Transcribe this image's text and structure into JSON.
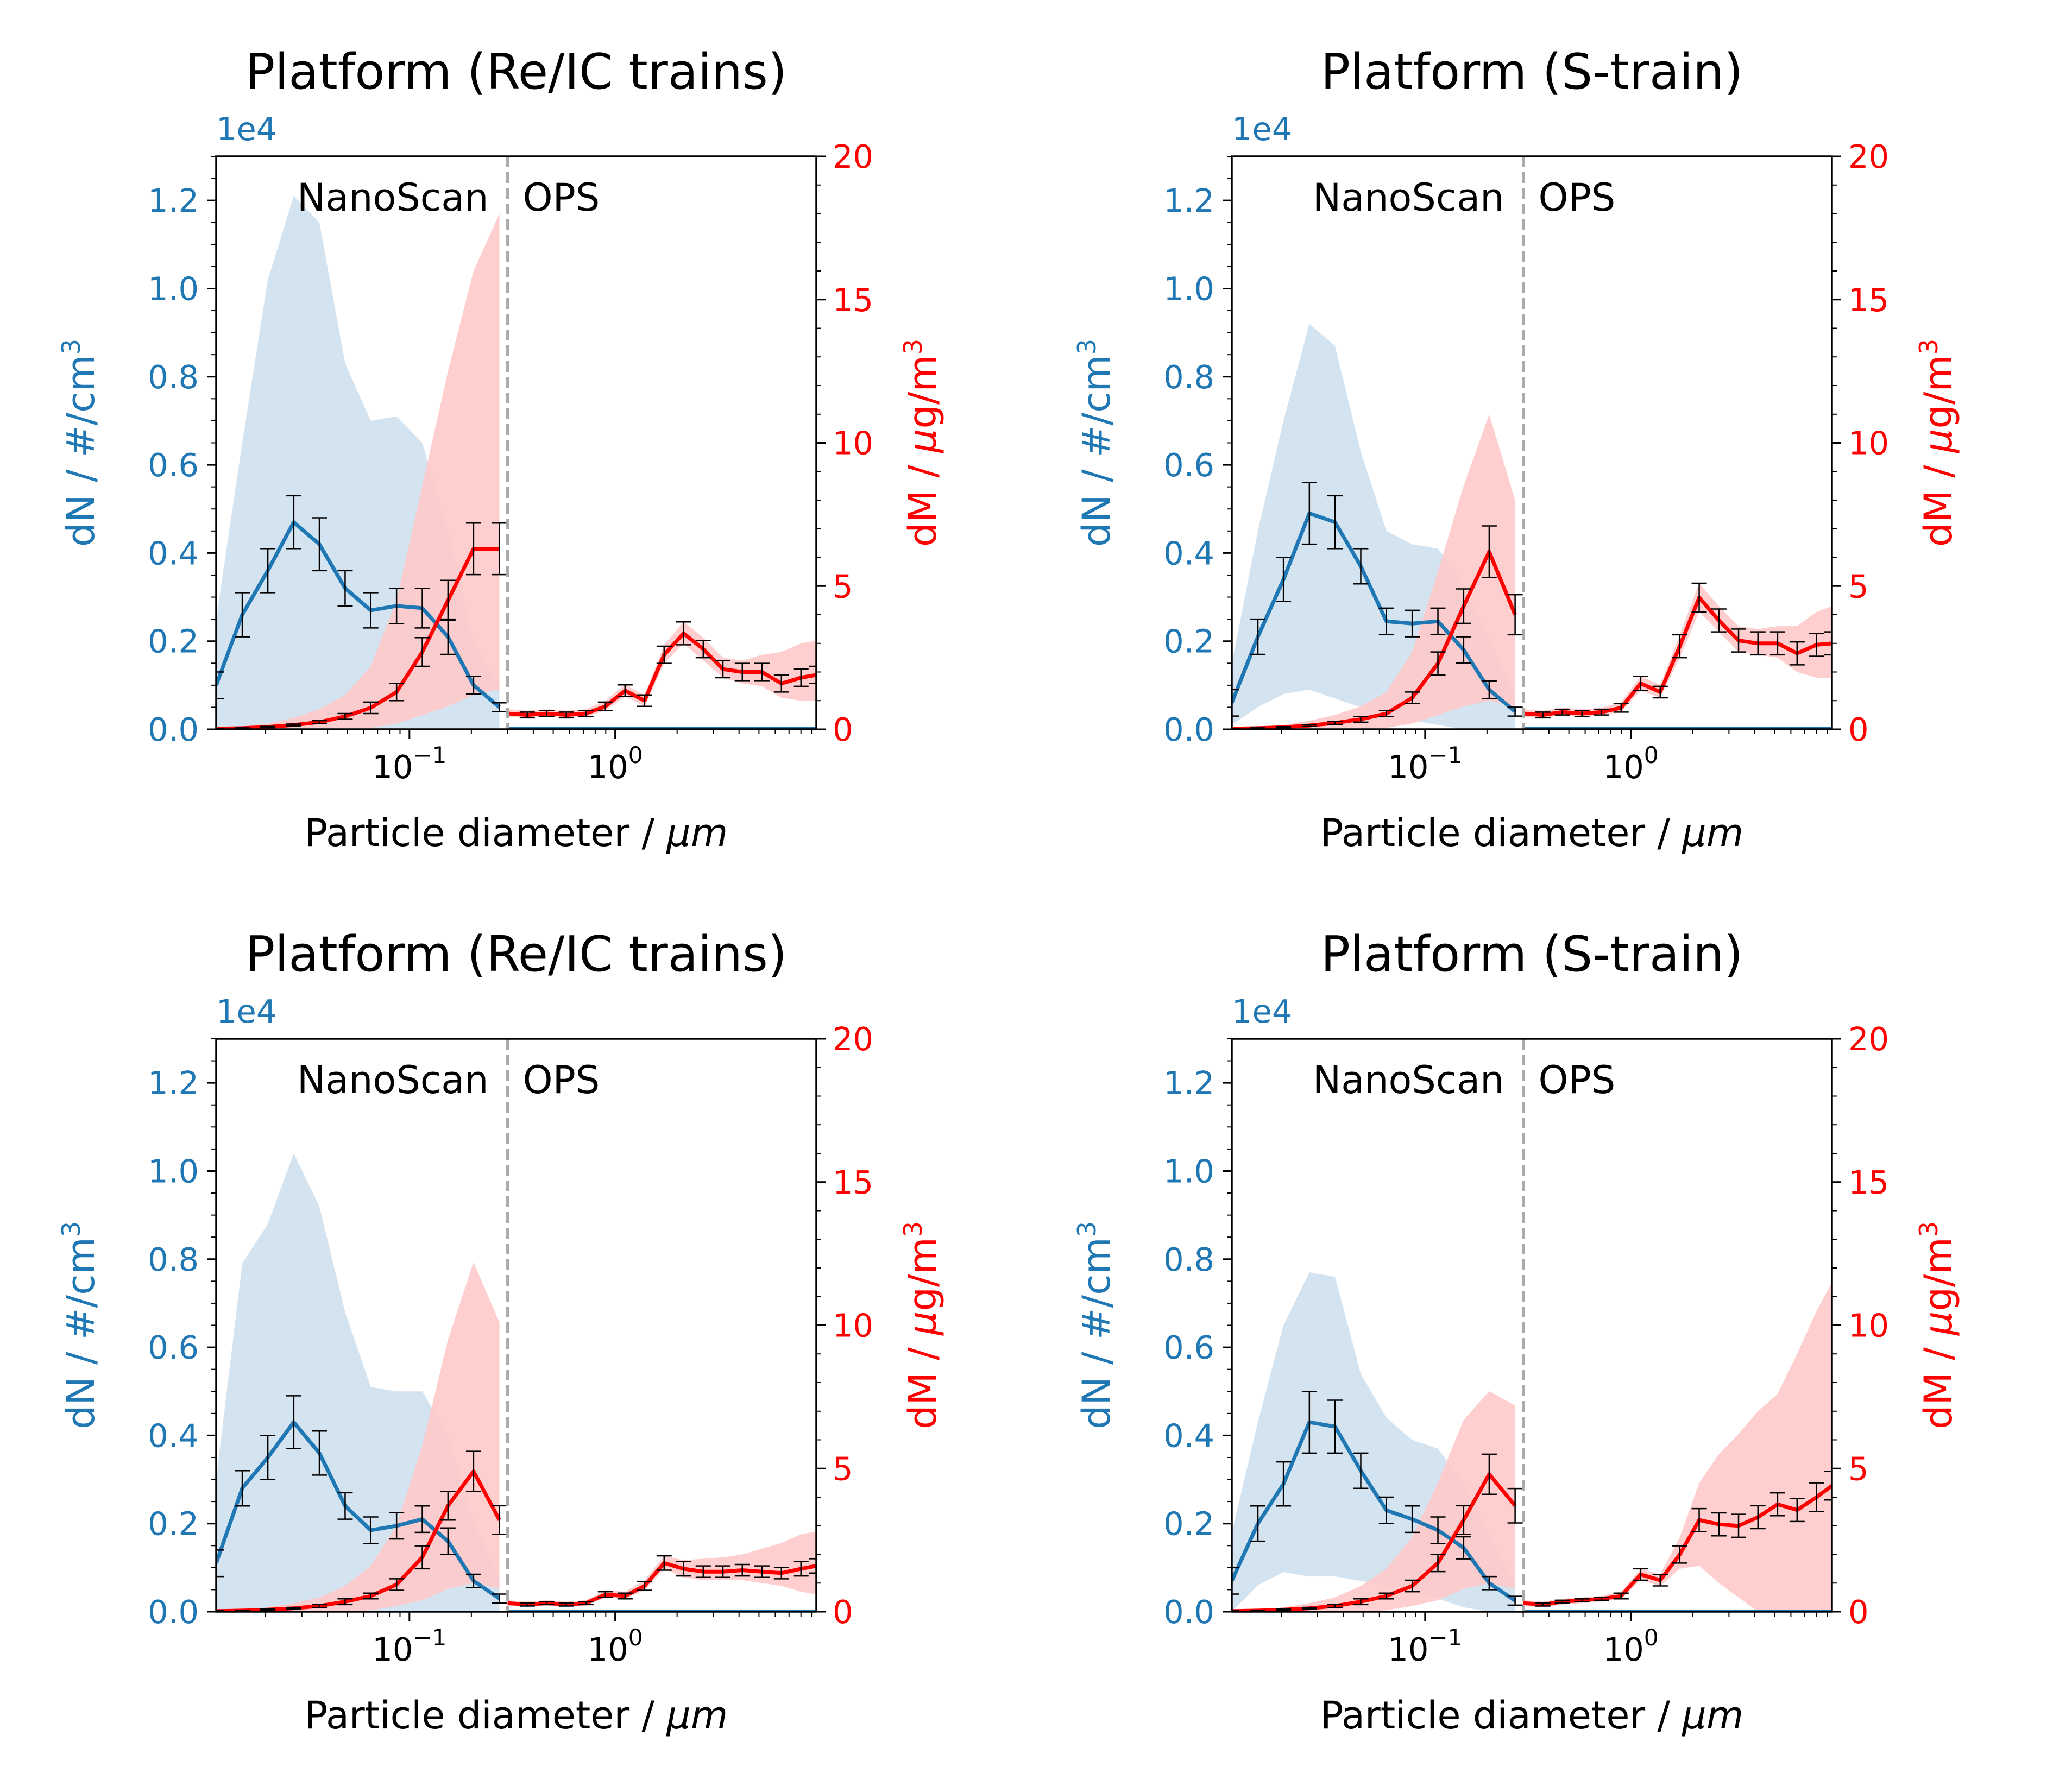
{
  "colors": {
    "number": "#1f77b4",
    "mass": "#ff0000",
    "number_band": "#cfe0ee",
    "mass_band": "#ffc9c9",
    "divider": "#aaaaaa",
    "errorbar": "#000000"
  },
  "shared": {
    "xlabel_text": "Particle diameter / ",
    "xlabel_unit": "μm",
    "ylabel_left": "dN / #/cm",
    "ylabel_right_a": "dM / ",
    "ylabel_right_b": "μ",
    "ylabel_right_c": "g/m",
    "superscript": "3",
    "left_offset": "1e4",
    "left_ticks": [
      "0.0",
      "0.2",
      "0.4",
      "0.6",
      "0.8",
      "1.0",
      "1.2"
    ],
    "right_ticks": [
      "0",
      "5",
      "10",
      "15",
      "20"
    ],
    "x_ticks": [
      {
        "base": "10",
        "exp": "−1"
      },
      {
        "base": "10",
        "exp": "0"
      }
    ],
    "instrument_left": "NanoScan",
    "instrument_right": "OPS"
  },
  "chart_data": [
    {
      "type": "line",
      "title": "Platform (Re/IC trains)",
      "xlabel": "Particle diameter / μm",
      "ylabel_left": "dN / #/cm3",
      "ylabel_right": "dM / μg/m3",
      "xscale": "log",
      "xlim": [
        0.0115,
        9.5
      ],
      "ylim_left": [
        0,
        13000
      ],
      "ylim_right": [
        0,
        20
      ],
      "divider_x": 0.3,
      "number": {
        "x": [
          0.0115,
          0.0154,
          0.0205,
          0.0274,
          0.0365,
          0.0487,
          0.0649,
          0.0866,
          0.1155,
          0.154,
          0.205,
          0.274
        ],
        "y": [
          1000,
          2600,
          3600,
          4700,
          4200,
          3200,
          2700,
          2800,
          2750,
          2100,
          1000,
          500
        ],
        "err": [
          300,
          500,
          500,
          600,
          600,
          400,
          400,
          400,
          450,
          400,
          200,
          100
        ],
        "band_low": [
          0,
          0,
          0,
          0,
          0,
          0,
          0,
          0,
          0,
          0,
          0,
          0
        ],
        "band_high": [
          2500,
          6500,
          10200,
          12100,
          11500,
          8300,
          7000,
          7100,
          6500,
          4500,
          2000,
          1000
        ]
      },
      "mass_nano": {
        "x": [
          0.0115,
          0.0154,
          0.0205,
          0.0274,
          0.0365,
          0.0487,
          0.0649,
          0.0866,
          0.1155,
          0.154,
          0.205,
          0.274
        ],
        "y": [
          0.02,
          0.04,
          0.08,
          0.15,
          0.25,
          0.45,
          0.75,
          1.3,
          2.7,
          4.5,
          6.3,
          6.3
        ],
        "err": [
          0.01,
          0.01,
          0.02,
          0.03,
          0.05,
          0.1,
          0.2,
          0.3,
          0.5,
          0.7,
          0.9,
          0.9
        ],
        "band_low": [
          0,
          0,
          0,
          0,
          0,
          0,
          0.05,
          0.2,
          0.5,
          0.8,
          1.2,
          1.4
        ],
        "band_high": [
          0.05,
          0.1,
          0.2,
          0.4,
          0.7,
          1.2,
          2.2,
          4.5,
          8.5,
          12.5,
          16.0,
          18.0
        ]
      },
      "mass_ops": {
        "x": [
          0.3,
          0.374,
          0.465,
          0.579,
          0.721,
          0.897,
          1.117,
          1.39,
          1.73,
          2.15,
          2.68,
          3.34,
          4.15,
          5.17,
          6.43,
          8.0,
          9.5
        ],
        "y": [
          0.55,
          0.5,
          0.55,
          0.5,
          0.55,
          0.8,
          1.35,
          1.0,
          2.6,
          3.35,
          2.8,
          2.1,
          2.0,
          2.0,
          1.6,
          1.8,
          1.9
        ],
        "err": [
          0.1,
          0.1,
          0.1,
          0.1,
          0.1,
          0.15,
          0.2,
          0.2,
          0.3,
          0.4,
          0.3,
          0.3,
          0.3,
          0.3,
          0.3,
          0.3,
          0.3
        ],
        "band_low": [
          0.45,
          0.4,
          0.45,
          0.4,
          0.45,
          0.65,
          1.15,
          0.8,
          2.3,
          3.0,
          2.4,
          1.8,
          1.6,
          1.5,
          1.1,
          1.0,
          1.0
        ],
        "band_high": [
          0.7,
          0.65,
          0.7,
          0.65,
          0.7,
          1.0,
          1.55,
          1.2,
          2.95,
          3.75,
          3.2,
          2.5,
          2.4,
          2.6,
          2.7,
          3.0,
          3.1
        ]
      }
    },
    {
      "type": "line",
      "title": "Platform (S-train)",
      "xlabel": "Particle diameter / μm",
      "ylabel_left": "dN / #/cm3",
      "ylabel_right": "dM / μg/m3",
      "xscale": "log",
      "xlim": [
        0.0115,
        9.5
      ],
      "ylim_left": [
        0,
        13000
      ],
      "ylim_right": [
        0,
        20
      ],
      "divider_x": 0.3,
      "number": {
        "x": [
          0.0115,
          0.0154,
          0.0205,
          0.0274,
          0.0365,
          0.0487,
          0.0649,
          0.0866,
          0.1155,
          0.154,
          0.205,
          0.274
        ],
        "y": [
          600,
          2100,
          3400,
          4900,
          4700,
          3700,
          2450,
          2400,
          2450,
          1800,
          900,
          400
        ],
        "err": [
          300,
          400,
          500,
          700,
          600,
          400,
          300,
          300,
          300,
          300,
          200,
          100
        ],
        "band_low": [
          100,
          500,
          800,
          900,
          700,
          500,
          300,
          200,
          100,
          0,
          0,
          0
        ],
        "band_high": [
          1500,
          4500,
          7000,
          9200,
          8700,
          6300,
          4500,
          4200,
          4100,
          3300,
          2000,
          800
        ]
      },
      "mass_nano": {
        "x": [
          0.0115,
          0.0154,
          0.0205,
          0.0274,
          0.0365,
          0.0487,
          0.0649,
          0.0866,
          0.1155,
          0.154,
          0.205,
          0.274
        ],
        "y": [
          0.02,
          0.04,
          0.07,
          0.13,
          0.22,
          0.35,
          0.55,
          1.1,
          2.3,
          4.3,
          6.2,
          4.0
        ],
        "err": [
          0.01,
          0.01,
          0.02,
          0.03,
          0.05,
          0.1,
          0.1,
          0.2,
          0.4,
          0.6,
          0.9,
          0.7
        ],
        "band_low": [
          0,
          0,
          0,
          0,
          0,
          0,
          0.05,
          0.2,
          0.5,
          0.8,
          1.0,
          0.8
        ],
        "band_high": [
          0.04,
          0.08,
          0.15,
          0.3,
          0.5,
          0.8,
          1.3,
          2.7,
          5.5,
          8.5,
          11.0,
          8.0
        ]
      },
      "mass_ops": {
        "x": [
          0.3,
          0.374,
          0.465,
          0.579,
          0.721,
          0.897,
          1.117,
          1.39,
          1.73,
          2.15,
          2.68,
          3.34,
          4.15,
          5.17,
          6.43,
          8.0,
          9.5
        ],
        "y": [
          0.55,
          0.5,
          0.6,
          0.55,
          0.6,
          0.75,
          1.6,
          1.3,
          2.9,
          4.6,
          3.8,
          3.1,
          3.0,
          3.0,
          2.65,
          2.95,
          3.0
        ],
        "err": [
          0.1,
          0.1,
          0.1,
          0.1,
          0.1,
          0.15,
          0.25,
          0.2,
          0.4,
          0.5,
          0.4,
          0.4,
          0.4,
          0.4,
          0.4,
          0.4,
          0.4
        ],
        "band_low": [
          0.45,
          0.4,
          0.5,
          0.45,
          0.5,
          0.6,
          1.35,
          1.1,
          2.5,
          4.1,
          3.4,
          2.7,
          2.6,
          2.5,
          2.0,
          1.8,
          1.8
        ],
        "band_high": [
          0.7,
          0.65,
          0.75,
          0.7,
          0.75,
          0.95,
          1.85,
          1.55,
          3.3,
          5.1,
          4.3,
          3.6,
          3.5,
          3.6,
          3.6,
          4.1,
          4.3
        ]
      }
    },
    {
      "type": "line",
      "title": "Platform (Re/IC trains)",
      "xlabel": "Particle diameter / μm",
      "ylabel_left": "dN / #/cm3",
      "ylabel_right": "dM / μg/m3",
      "xscale": "log",
      "xlim": [
        0.0115,
        9.5
      ],
      "ylim_left": [
        0,
        13000
      ],
      "ylim_right": [
        0,
        20
      ],
      "divider_x": 0.3,
      "number": {
        "x": [
          0.0115,
          0.0154,
          0.0205,
          0.0274,
          0.0365,
          0.0487,
          0.0649,
          0.0866,
          0.1155,
          0.154,
          0.205,
          0.274
        ],
        "y": [
          1100,
          2800,
          3500,
          4300,
          3600,
          2400,
          1850,
          1950,
          2100,
          1600,
          700,
          300
        ],
        "err": [
          300,
          400,
          500,
          600,
          500,
          300,
          300,
          300,
          300,
          300,
          150,
          100
        ],
        "band_low": [
          0,
          0,
          0,
          0,
          0,
          0,
          0,
          0,
          0,
          0,
          0,
          0
        ],
        "band_high": [
          3000,
          7900,
          8800,
          10400,
          9200,
          6800,
          5100,
          5000,
          5000,
          4000,
          2000,
          800
        ]
      },
      "mass_nano": {
        "x": [
          0.0115,
          0.0154,
          0.0205,
          0.0274,
          0.0365,
          0.0487,
          0.0649,
          0.0866,
          0.1155,
          0.154,
          0.205,
          0.274
        ],
        "y": [
          0.02,
          0.04,
          0.07,
          0.12,
          0.2,
          0.35,
          0.55,
          0.95,
          1.9,
          3.7,
          4.9,
          3.2
        ],
        "err": [
          0.01,
          0.01,
          0.02,
          0.03,
          0.05,
          0.1,
          0.1,
          0.2,
          0.4,
          0.5,
          0.7,
          0.5
        ],
        "band_low": [
          0,
          0,
          0,
          0,
          0,
          0,
          0.05,
          0.2,
          0.4,
          0.8,
          1.0,
          0.8
        ],
        "band_high": [
          0.04,
          0.08,
          0.15,
          0.3,
          0.5,
          0.9,
          1.6,
          3.0,
          5.8,
          9.5,
          12.2,
          10.1
        ]
      },
      "mass_ops": {
        "x": [
          0.3,
          0.374,
          0.465,
          0.579,
          0.721,
          0.897,
          1.117,
          1.39,
          1.73,
          2.15,
          2.68,
          3.34,
          4.15,
          5.17,
          6.43,
          8.0,
          9.5
        ],
        "y": [
          0.3,
          0.25,
          0.3,
          0.25,
          0.3,
          0.6,
          0.55,
          0.9,
          1.7,
          1.5,
          1.4,
          1.4,
          1.45,
          1.4,
          1.35,
          1.5,
          1.6
        ],
        "err": [
          0.05,
          0.05,
          0.05,
          0.05,
          0.05,
          0.1,
          0.1,
          0.15,
          0.25,
          0.25,
          0.2,
          0.2,
          0.2,
          0.2,
          0.2,
          0.25,
          0.25
        ],
        "band_low": [
          0.2,
          0.18,
          0.2,
          0.18,
          0.2,
          0.5,
          0.45,
          0.75,
          1.5,
          1.2,
          1.1,
          1.1,
          1.1,
          1.0,
          0.9,
          0.7,
          0.6
        ],
        "band_high": [
          0.4,
          0.35,
          0.4,
          0.35,
          0.4,
          0.75,
          0.7,
          1.1,
          1.95,
          1.8,
          1.85,
          1.9,
          2.0,
          2.2,
          2.4,
          2.7,
          2.8
        ]
      }
    },
    {
      "type": "line",
      "title": "Platform (S-train)",
      "xlabel": "Particle diameter / μm",
      "ylabel_left": "dN / #/cm3",
      "ylabel_right": "dM / μg/m3",
      "xscale": "log",
      "xlim": [
        0.0115,
        9.5
      ],
      "ylim_left": [
        0,
        13000
      ],
      "ylim_right": [
        0,
        20
      ],
      "divider_x": 0.3,
      "number": {
        "x": [
          0.0115,
          0.0154,
          0.0205,
          0.0274,
          0.0365,
          0.0487,
          0.0649,
          0.0866,
          0.1155,
          0.154,
          0.205,
          0.274
        ],
        "y": [
          700,
          2000,
          2900,
          4300,
          4200,
          3200,
          2300,
          2100,
          1850,
          1450,
          650,
          250
        ],
        "err": [
          300,
          400,
          500,
          700,
          600,
          400,
          300,
          300,
          300,
          250,
          150,
          100
        ],
        "band_low": [
          0,
          600,
          900,
          800,
          800,
          700,
          600,
          500,
          300,
          100,
          0,
          0
        ],
        "band_high": [
          1800,
          4300,
          6500,
          7700,
          7600,
          5400,
          4400,
          3900,
          3700,
          2900,
          1800,
          600
        ]
      },
      "mass_nano": {
        "x": [
          0.0115,
          0.0154,
          0.0205,
          0.0274,
          0.0365,
          0.0487,
          0.0649,
          0.0866,
          0.1155,
          0.154,
          0.205,
          0.274
        ],
        "y": [
          0.02,
          0.04,
          0.07,
          0.12,
          0.2,
          0.35,
          0.55,
          0.9,
          1.7,
          3.2,
          4.8,
          3.7
        ],
        "err": [
          0.01,
          0.01,
          0.02,
          0.03,
          0.05,
          0.1,
          0.1,
          0.2,
          0.3,
          0.5,
          0.7,
          0.6
        ],
        "band_low": [
          0,
          0,
          0,
          0,
          0,
          0,
          0.05,
          0.2,
          0.4,
          0.8,
          1.0,
          0.8
        ],
        "band_high": [
          0.04,
          0.08,
          0.15,
          0.3,
          0.5,
          0.9,
          1.5,
          2.6,
          4.5,
          6.7,
          7.7,
          7.2
        ]
      },
      "mass_ops": {
        "x": [
          0.3,
          0.374,
          0.465,
          0.579,
          0.721,
          0.897,
          1.117,
          1.39,
          1.73,
          2.15,
          2.68,
          3.34,
          4.15,
          5.17,
          6.43,
          8.0,
          9.5
        ],
        "y": [
          0.3,
          0.25,
          0.35,
          0.4,
          0.45,
          0.55,
          1.3,
          1.1,
          2.0,
          3.2,
          3.05,
          3.0,
          3.3,
          3.75,
          3.55,
          4.0,
          4.4
        ],
        "err": [
          0.05,
          0.05,
          0.05,
          0.05,
          0.05,
          0.1,
          0.2,
          0.2,
          0.3,
          0.4,
          0.4,
          0.4,
          0.4,
          0.4,
          0.4,
          0.5,
          0.5
        ],
        "band_low": [
          0.2,
          0.15,
          0.25,
          0.3,
          0.35,
          0.45,
          1.1,
          0.9,
          1.5,
          1.6,
          1.0,
          0.5,
          0,
          0,
          0,
          0,
          0
        ],
        "band_high": [
          0.4,
          0.35,
          0.45,
          0.5,
          0.55,
          0.7,
          1.5,
          1.3,
          2.6,
          4.5,
          5.5,
          6.2,
          7.0,
          7.6,
          9.0,
          10.5,
          11.5
        ]
      }
    }
  ]
}
